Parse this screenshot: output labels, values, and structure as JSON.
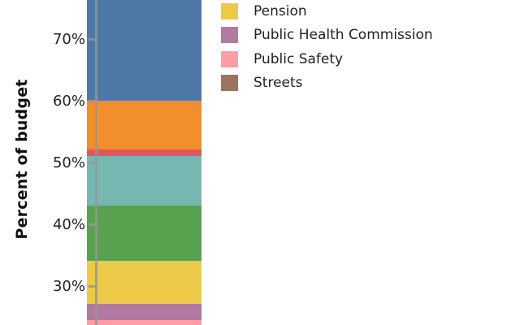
{
  "y_axis": {
    "label": "Percent of budget",
    "ticks": [
      {
        "label": "70%",
        "value": 70
      },
      {
        "label": "60%",
        "value": 60
      },
      {
        "label": "50%",
        "value": 50
      },
      {
        "label": "40%",
        "value": 40
      },
      {
        "label": "30%",
        "value": 30
      }
    ],
    "axis_color": "#969696",
    "text_color": "#222222"
  },
  "legend": {
    "items": [
      {
        "label": "Pension",
        "color": "#EDC948"
      },
      {
        "label": "Public Health Commission",
        "color": "#B07AA1"
      },
      {
        "label": "Public Safety",
        "color": "#FF9DA7"
      },
      {
        "label": "Streets",
        "color": "#9C755F"
      }
    ]
  },
  "chart_data": {
    "type": "bar",
    "subtype": "stacked-vertical-single-bar",
    "ylabel": "Percent of budget",
    "note": "View is cropped: bar is cut off above ~76% and below ~24%; legend is cut off above the Pension entry",
    "visible_percent_range": [
      23.7,
      76.4
    ],
    "grid": false,
    "legend_position": "upper-right",
    "segments_bottom_to_top": [
      {
        "legend_label": "Public Safety",
        "color_name": "pink",
        "color": "#FF9DA7",
        "from_percent": null,
        "to_percent": 24.6,
        "note": "bottom cut off by crop"
      },
      {
        "legend_label": "Public Health Commission",
        "color_name": "purple",
        "color": "#B07AA1",
        "from_percent": 24.6,
        "to_percent": 27.2
      },
      {
        "legend_label": "Pension",
        "color_name": "yellow",
        "color": "#EDC948",
        "from_percent": 27.2,
        "to_percent": 34.2
      },
      {
        "legend_label": null,
        "color_name": "green",
        "color": "#59A14F",
        "from_percent": 34.2,
        "to_percent": 43.1
      },
      {
        "legend_label": null,
        "color_name": "teal",
        "color": "#76B7B2",
        "from_percent": 43.1,
        "to_percent": 51.1
      },
      {
        "legend_label": null,
        "color_name": "red",
        "color": "#E15759",
        "from_percent": 51.1,
        "to_percent": 52.2
      },
      {
        "legend_label": null,
        "color_name": "orange",
        "color": "#F28E2B",
        "from_percent": 52.2,
        "to_percent": 60.1
      },
      {
        "legend_label": null,
        "color_name": "blue",
        "color": "#4E79A7",
        "from_percent": 60.1,
        "to_percent": null,
        "note": "top cut off by crop"
      }
    ]
  }
}
